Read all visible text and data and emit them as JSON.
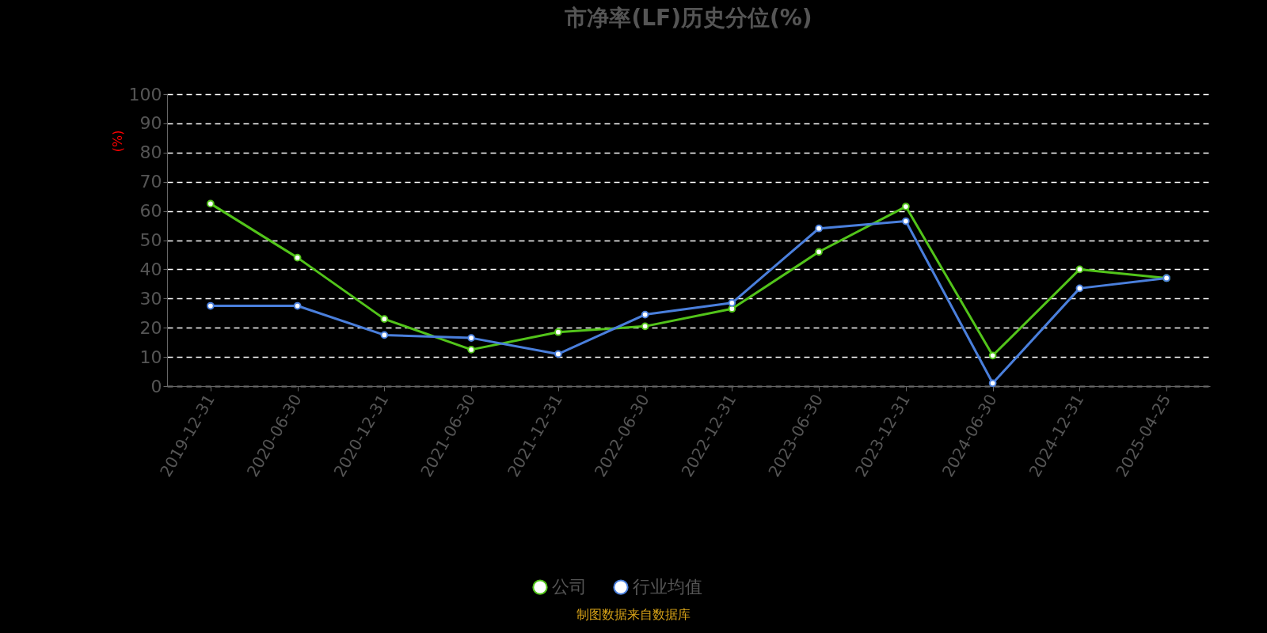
{
  "chart_data": {
    "type": "line",
    "title": "市净率(LF)历史分位(%)",
    "ylabel": "(%)",
    "categories": [
      "2019-12-31",
      "2020-06-30",
      "2020-12-31",
      "2021-06-30",
      "2021-12-31",
      "2022-06-30",
      "2022-12-31",
      "2023-06-30",
      "2023-12-31",
      "2024-06-30",
      "2024-12-31",
      "2025-04-25"
    ],
    "series": [
      {
        "name": "公司",
        "color": "#52c41a",
        "values": [
          62.5,
          44,
          23,
          12.5,
          18.5,
          20.5,
          26.5,
          46,
          61.5,
          10.5,
          40,
          37
        ]
      },
      {
        "name": "行业均值",
        "color": "#4a7fdc",
        "values": [
          27.5,
          27.5,
          17.5,
          16.5,
          11,
          24.5,
          28.5,
          54,
          56.5,
          1,
          33.5,
          37
        ]
      }
    ],
    "ylim": [
      0,
      100
    ],
    "yticks": [
      0,
      10,
      20,
      30,
      40,
      50,
      60,
      70,
      80,
      90,
      100
    ],
    "grid": "y",
    "legend": "bottom",
    "marker": "circle",
    "line_style": "solid",
    "annotations": [
      "制图数据来自数据库"
    ]
  }
}
